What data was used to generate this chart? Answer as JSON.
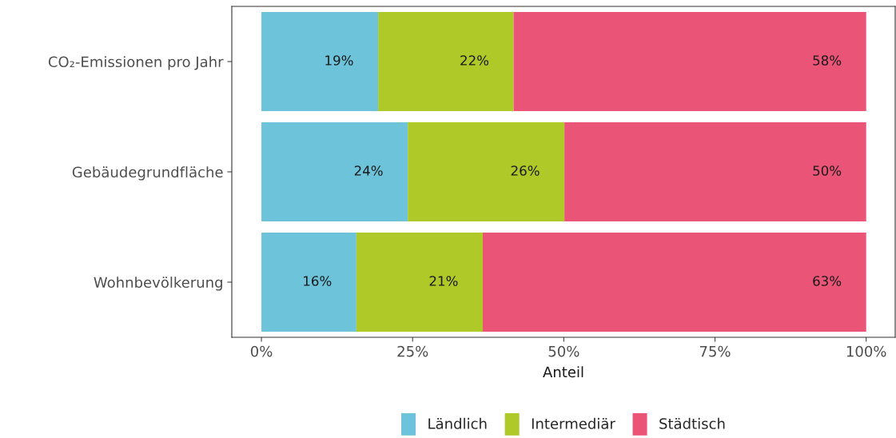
{
  "chart_data": {
    "type": "bar",
    "orientation": "horizontal",
    "stacked": true,
    "categories": [
      "CO₂-Emissionen pro Jahr",
      "Gebäudegrundfläche",
      "Wohnbevölkerung"
    ],
    "series": [
      {
        "name": "Ländlich",
        "color": "#6cc3da",
        "values": [
          19.3,
          24.2,
          15.7
        ],
        "value_labels": [
          "19%",
          "24%",
          "16%"
        ]
      },
      {
        "name": "Intermediär",
        "color": "#aec928",
        "values": [
          22.4,
          25.9,
          20.9
        ],
        "value_labels": [
          "22%",
          "26%",
          "21%"
        ]
      },
      {
        "name": "Städtisch",
        "color": "#ea5477",
        "values": [
          58.3,
          49.9,
          63.4
        ],
        "value_labels": [
          "58%",
          "50%",
          "63%"
        ]
      }
    ],
    "xlabel": "Anteil",
    "xlim": [
      -4.9,
      104.8
    ],
    "xticks": [
      {
        "value": 0,
        "label": "0%"
      },
      {
        "value": 25,
        "label": "25%"
      },
      {
        "value": 50,
        "label": "50%"
      },
      {
        "value": 75,
        "label": "75%"
      },
      {
        "value": 100,
        "label": "100%"
      }
    ],
    "grid": false,
    "legend": "bottom"
  }
}
